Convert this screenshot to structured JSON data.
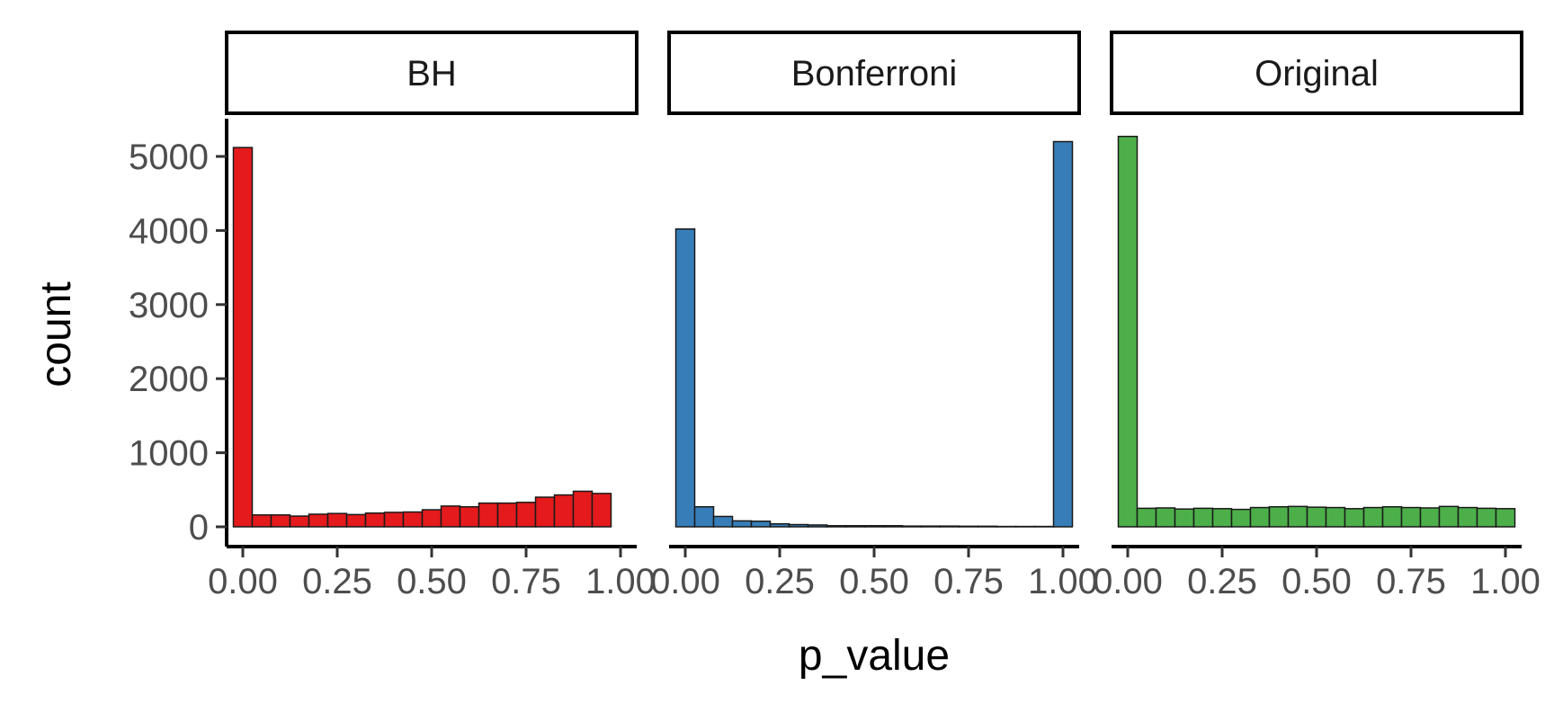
{
  "chart_data": {
    "type": "bar",
    "subtype": "histogram",
    "facet_layout": "1 row x 3 columns, shared y axis",
    "xlabel": "p_value",
    "ylabel": "count",
    "xlim": [
      0,
      1
    ],
    "ylim": [
      0,
      5200
    ],
    "x_ticks": [
      "0.00",
      "0.25",
      "0.50",
      "0.75",
      "1.00"
    ],
    "y_ticks": [
      "0",
      "1000",
      "2000",
      "3000",
      "4000",
      "5000"
    ],
    "grid": false,
    "legend": "none",
    "bin_centers": [
      0.0,
      0.05,
      0.1,
      0.15,
      0.2,
      0.25,
      0.3,
      0.35,
      0.4,
      0.45,
      0.5,
      0.55,
      0.6,
      0.65,
      0.7,
      0.75,
      0.8,
      0.85,
      0.9,
      0.95,
      1.0
    ],
    "panels": [
      {
        "name": "BH",
        "color": "#E41A1C",
        "values": [
          5120,
          160,
          160,
          145,
          170,
          180,
          165,
          185,
          195,
          200,
          230,
          280,
          270,
          320,
          320,
          330,
          400,
          430,
          480,
          450,
          0
        ]
      },
      {
        "name": "Bonferroni",
        "color": "#377EB8",
        "values": [
          4020,
          270,
          140,
          80,
          75,
          40,
          30,
          25,
          15,
          15,
          15,
          15,
          10,
          10,
          10,
          8,
          8,
          5,
          5,
          5,
          5200
        ]
      },
      {
        "name": "Original",
        "color": "#4DAF4A",
        "values": [
          5270,
          250,
          255,
          240,
          250,
          245,
          235,
          260,
          270,
          275,
          265,
          260,
          245,
          260,
          270,
          260,
          255,
          275,
          260,
          250,
          245
        ]
      }
    ]
  }
}
